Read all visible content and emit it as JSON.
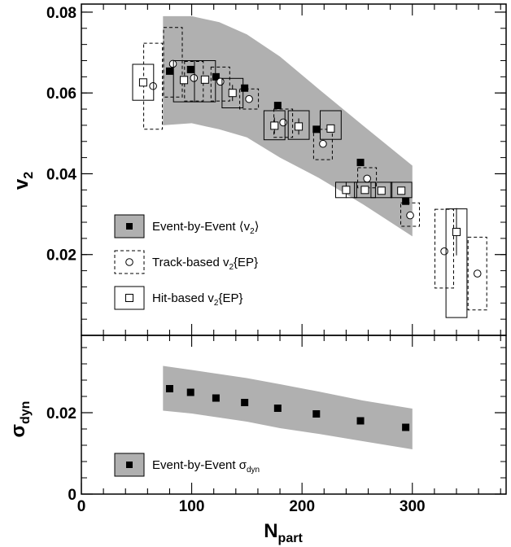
{
  "colors": {
    "band": "#b0b0b0",
    "frame": "#000000"
  },
  "chart_data": [
    {
      "type": "scatter",
      "panel": "top",
      "ylabel": "v",
      "ylabel_sub": "2",
      "xlim": [
        0,
        385
      ],
      "ylim": [
        0,
        0.082
      ],
      "yticks": [
        0.02,
        0.04,
        0.06,
        0.08
      ],
      "ytick_labels": [
        "0.02",
        "0.04",
        "0.06",
        "0.08"
      ],
      "band": {
        "x": [
          74,
          100,
          125,
          150,
          180,
          215,
          255,
          300
        ],
        "upper": [
          0.079,
          0.079,
          0.0775,
          0.0745,
          0.069,
          0.061,
          0.052,
          0.042
        ],
        "lower": [
          0.052,
          0.0525,
          0.051,
          0.049,
          0.044,
          0.039,
          0.0325,
          0.0245
        ]
      },
      "series": [
        {
          "name": "Event-by-Event ⟨v₂⟩",
          "marker": "filled-square",
          "x": [
            80,
            99,
            122,
            148,
            178,
            213,
            253,
            294
          ],
          "y": [
            0.0654,
            0.0658,
            0.064,
            0.0612,
            0.0569,
            0.051,
            0.0428,
            0.0332
          ]
        },
        {
          "name": "Track-based v₂{EP}",
          "marker": "open-circle",
          "x": [
            65,
            83,
            102,
            126,
            152,
            183,
            219,
            259,
            298,
            329,
            359
          ],
          "y": [
            0.0617,
            0.0672,
            0.0637,
            0.0628,
            0.0585,
            0.0527,
            0.0474,
            0.0388,
            0.0297,
            0.0208,
            0.0153
          ],
          "sys_lo": [
            0.051,
            0.059,
            0.058,
            0.058,
            0.056,
            0.049,
            0.0435,
            0.0365,
            0.027,
            0.0117,
            0.0063
          ],
          "sys_hi": [
            0.0723,
            0.0762,
            0.0678,
            0.0664,
            0.061,
            0.056,
            0.051,
            0.0415,
            0.0328,
            0.0312,
            0.0243
          ],
          "box_halfwidth": [
            8.5,
            8.5,
            8.5,
            8.5,
            8.5,
            8.5,
            8.5,
            8.5,
            8.5,
            8.5,
            8.5
          ]
        },
        {
          "name": "Hit-based v₂{EP}",
          "marker": "open-square",
          "x": [
            56,
            93,
            112,
            137,
            175,
            197,
            226,
            240,
            257,
            272,
            290,
            340
          ],
          "y": [
            0.0626,
            0.0632,
            0.0633,
            0.06,
            0.0519,
            0.0517,
            0.0512,
            0.036,
            0.036,
            0.0358,
            0.0358,
            0.0256
          ],
          "err_lo": [
            0.0005,
            0.0,
            0.0,
            0.002,
            0.002,
            0.002,
            0.0,
            0.002,
            0.0,
            0.0,
            0.0,
            0.0058
          ],
          "err_hi": [
            0.0005,
            0.0,
            0.0,
            0.002,
            0.002,
            0.002,
            0.0,
            0.002,
            0.0,
            0.0,
            0.0,
            0.0059
          ],
          "sys_lo": [
            0.0582,
            0.0578,
            0.0578,
            0.0563,
            0.0484,
            0.0485,
            0.0485,
            0.0341,
            0.0341,
            0.0341,
            0.0341,
            0.0044
          ],
          "sys_hi": [
            0.0671,
            0.068,
            0.068,
            0.0636,
            0.0556,
            0.0556,
            0.0556,
            0.0379,
            0.0379,
            0.0379,
            0.0379,
            0.0313
          ],
          "box_halfwidth": [
            9.5,
            9.5,
            9.5,
            9.5,
            9.5,
            9.5,
            9.5,
            9.5,
            9.5,
            9.5,
            9.5,
            9.5
          ]
        }
      ],
      "legend": [
        {
          "marker": "band-filled-square",
          "label": "Event-by-Event ⟨v",
          "sub": "2",
          "suffix": "⟩"
        },
        {
          "marker": "dashed-box-circle",
          "label": "Track-based v",
          "sub": "2",
          "suffix": "{EP}"
        },
        {
          "marker": "solid-box-square",
          "label": "Hit-based v",
          "sub": "2",
          "suffix": "{EP}"
        }
      ]
    },
    {
      "type": "scatter",
      "panel": "bottom",
      "ylabel": "σ",
      "ylabel_sub": "dyn",
      "xlabel": "N",
      "xlabel_sub": "part",
      "xlim": [
        0,
        385
      ],
      "ylim": [
        0,
        0.039
      ],
      "xticks": [
        0,
        100,
        200,
        300
      ],
      "xtick_labels": [
        "0",
        "100",
        "200",
        "300"
      ],
      "yticks": [
        0,
        0.02
      ],
      "ytick_labels": [
        "0",
        "0.02"
      ],
      "band": {
        "x": [
          74,
          100,
          125,
          150,
          180,
          215,
          255,
          300
        ],
        "upper": [
          0.0315,
          0.0305,
          0.0295,
          0.0285,
          0.027,
          0.0252,
          0.023,
          0.021
        ],
        "lower": [
          0.0205,
          0.0198,
          0.0188,
          0.0178,
          0.0162,
          0.0148,
          0.013,
          0.011
        ]
      },
      "series": [
        {
          "name": "Event-by-Event σ_dyn",
          "marker": "filled-square",
          "x": [
            80,
            99,
            122,
            148,
            178,
            213,
            253,
            294
          ],
          "y": [
            0.0259,
            0.025,
            0.0236,
            0.0225,
            0.0211,
            0.0197,
            0.018,
            0.0164
          ]
        }
      ],
      "legend": [
        {
          "marker": "band-filled-square",
          "label": "Event-by-Event σ",
          "sub": "dyn",
          "suffix": ""
        }
      ]
    }
  ]
}
